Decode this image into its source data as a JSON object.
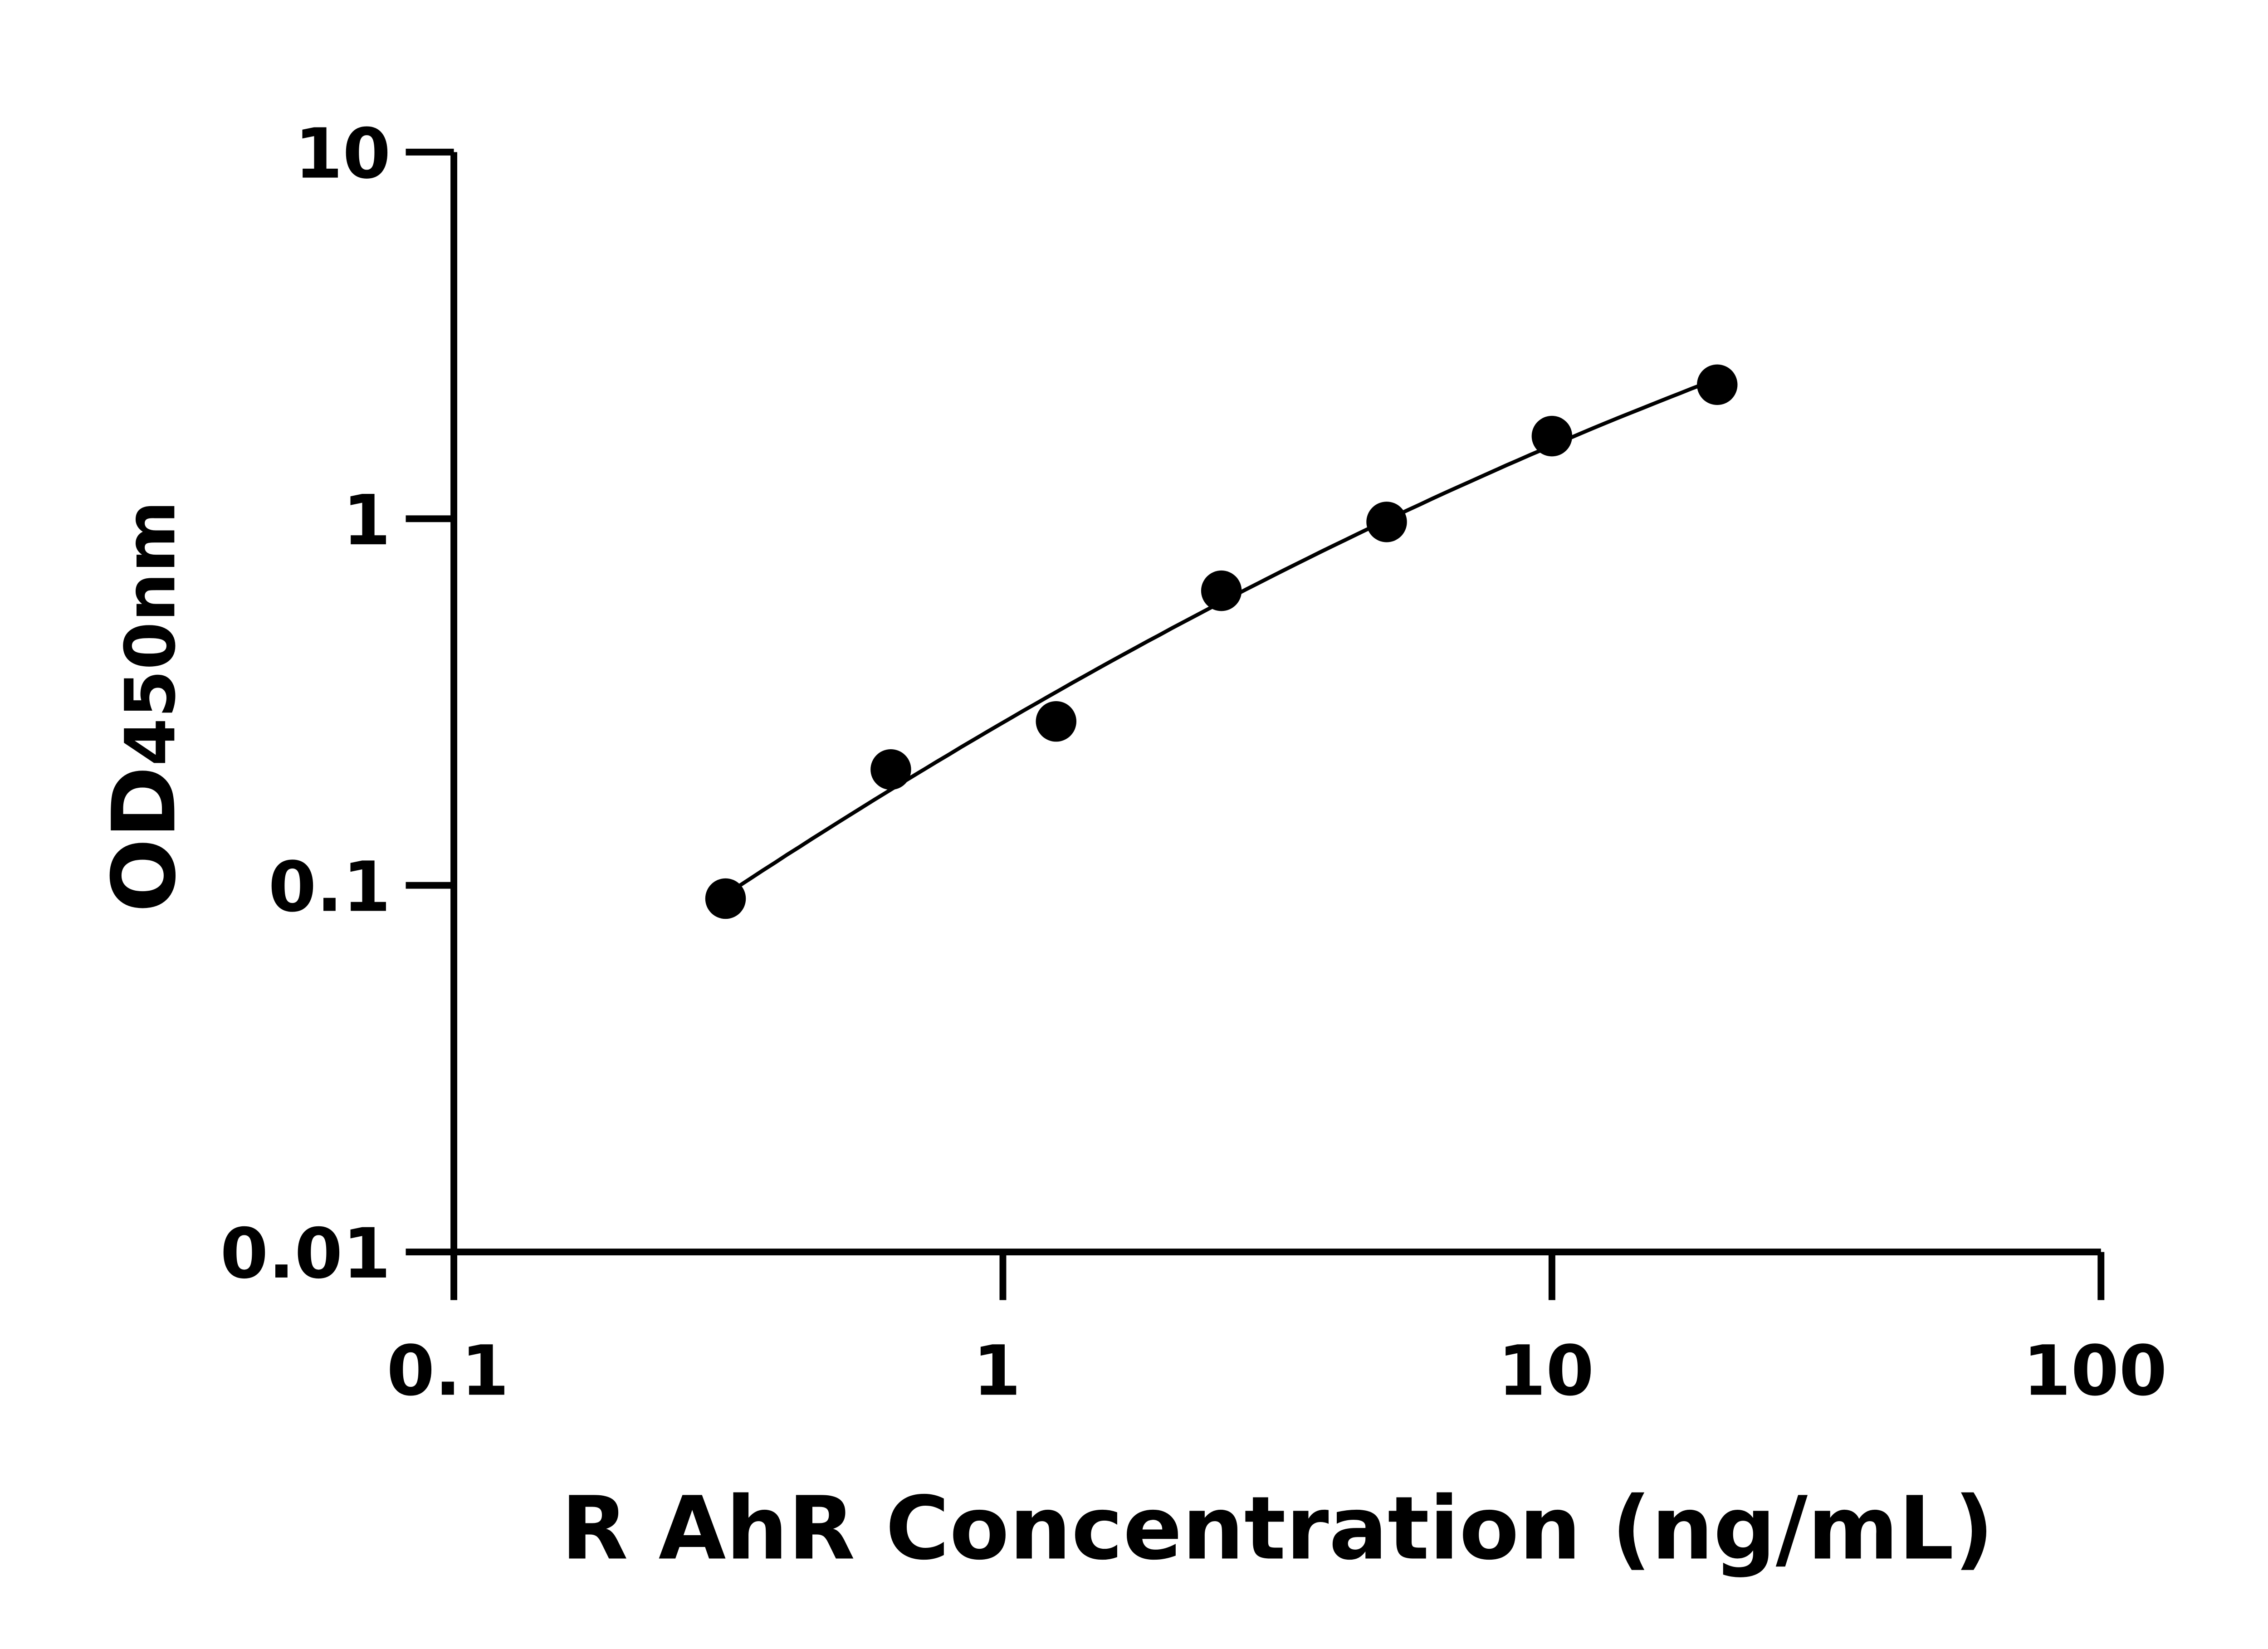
{
  "chart_data": {
    "type": "scatter",
    "title": "",
    "xlabel": "R AhR Concentration (ng/mL)",
    "ylabel_main": "OD",
    "ylabel_sub": "450nm",
    "x_scale": "log",
    "y_scale": "log",
    "xlim": [
      0.1,
      100
    ],
    "ylim": [
      0.01,
      10
    ],
    "x_ticks": [
      0.1,
      1,
      10,
      100
    ],
    "x_tick_labels": [
      "0.1",
      "1",
      "10",
      "100"
    ],
    "y_ticks": [
      0.01,
      0.1,
      1,
      10
    ],
    "y_tick_labels": [
      "0.01",
      "0.1",
      "1",
      "10"
    ],
    "grid": false,
    "legend": "none",
    "fit_curve": true,
    "series": [
      {
        "x": [
          0.3125,
          0.625,
          1.25,
          2.5,
          5,
          10,
          20
        ],
        "y": [
          0.092,
          0.207,
          0.28,
          0.636,
          0.98,
          1.68,
          2.32
        ]
      }
    ],
    "colors": {
      "points": "#000000",
      "axes": "#000000",
      "curve": "#000000"
    }
  }
}
